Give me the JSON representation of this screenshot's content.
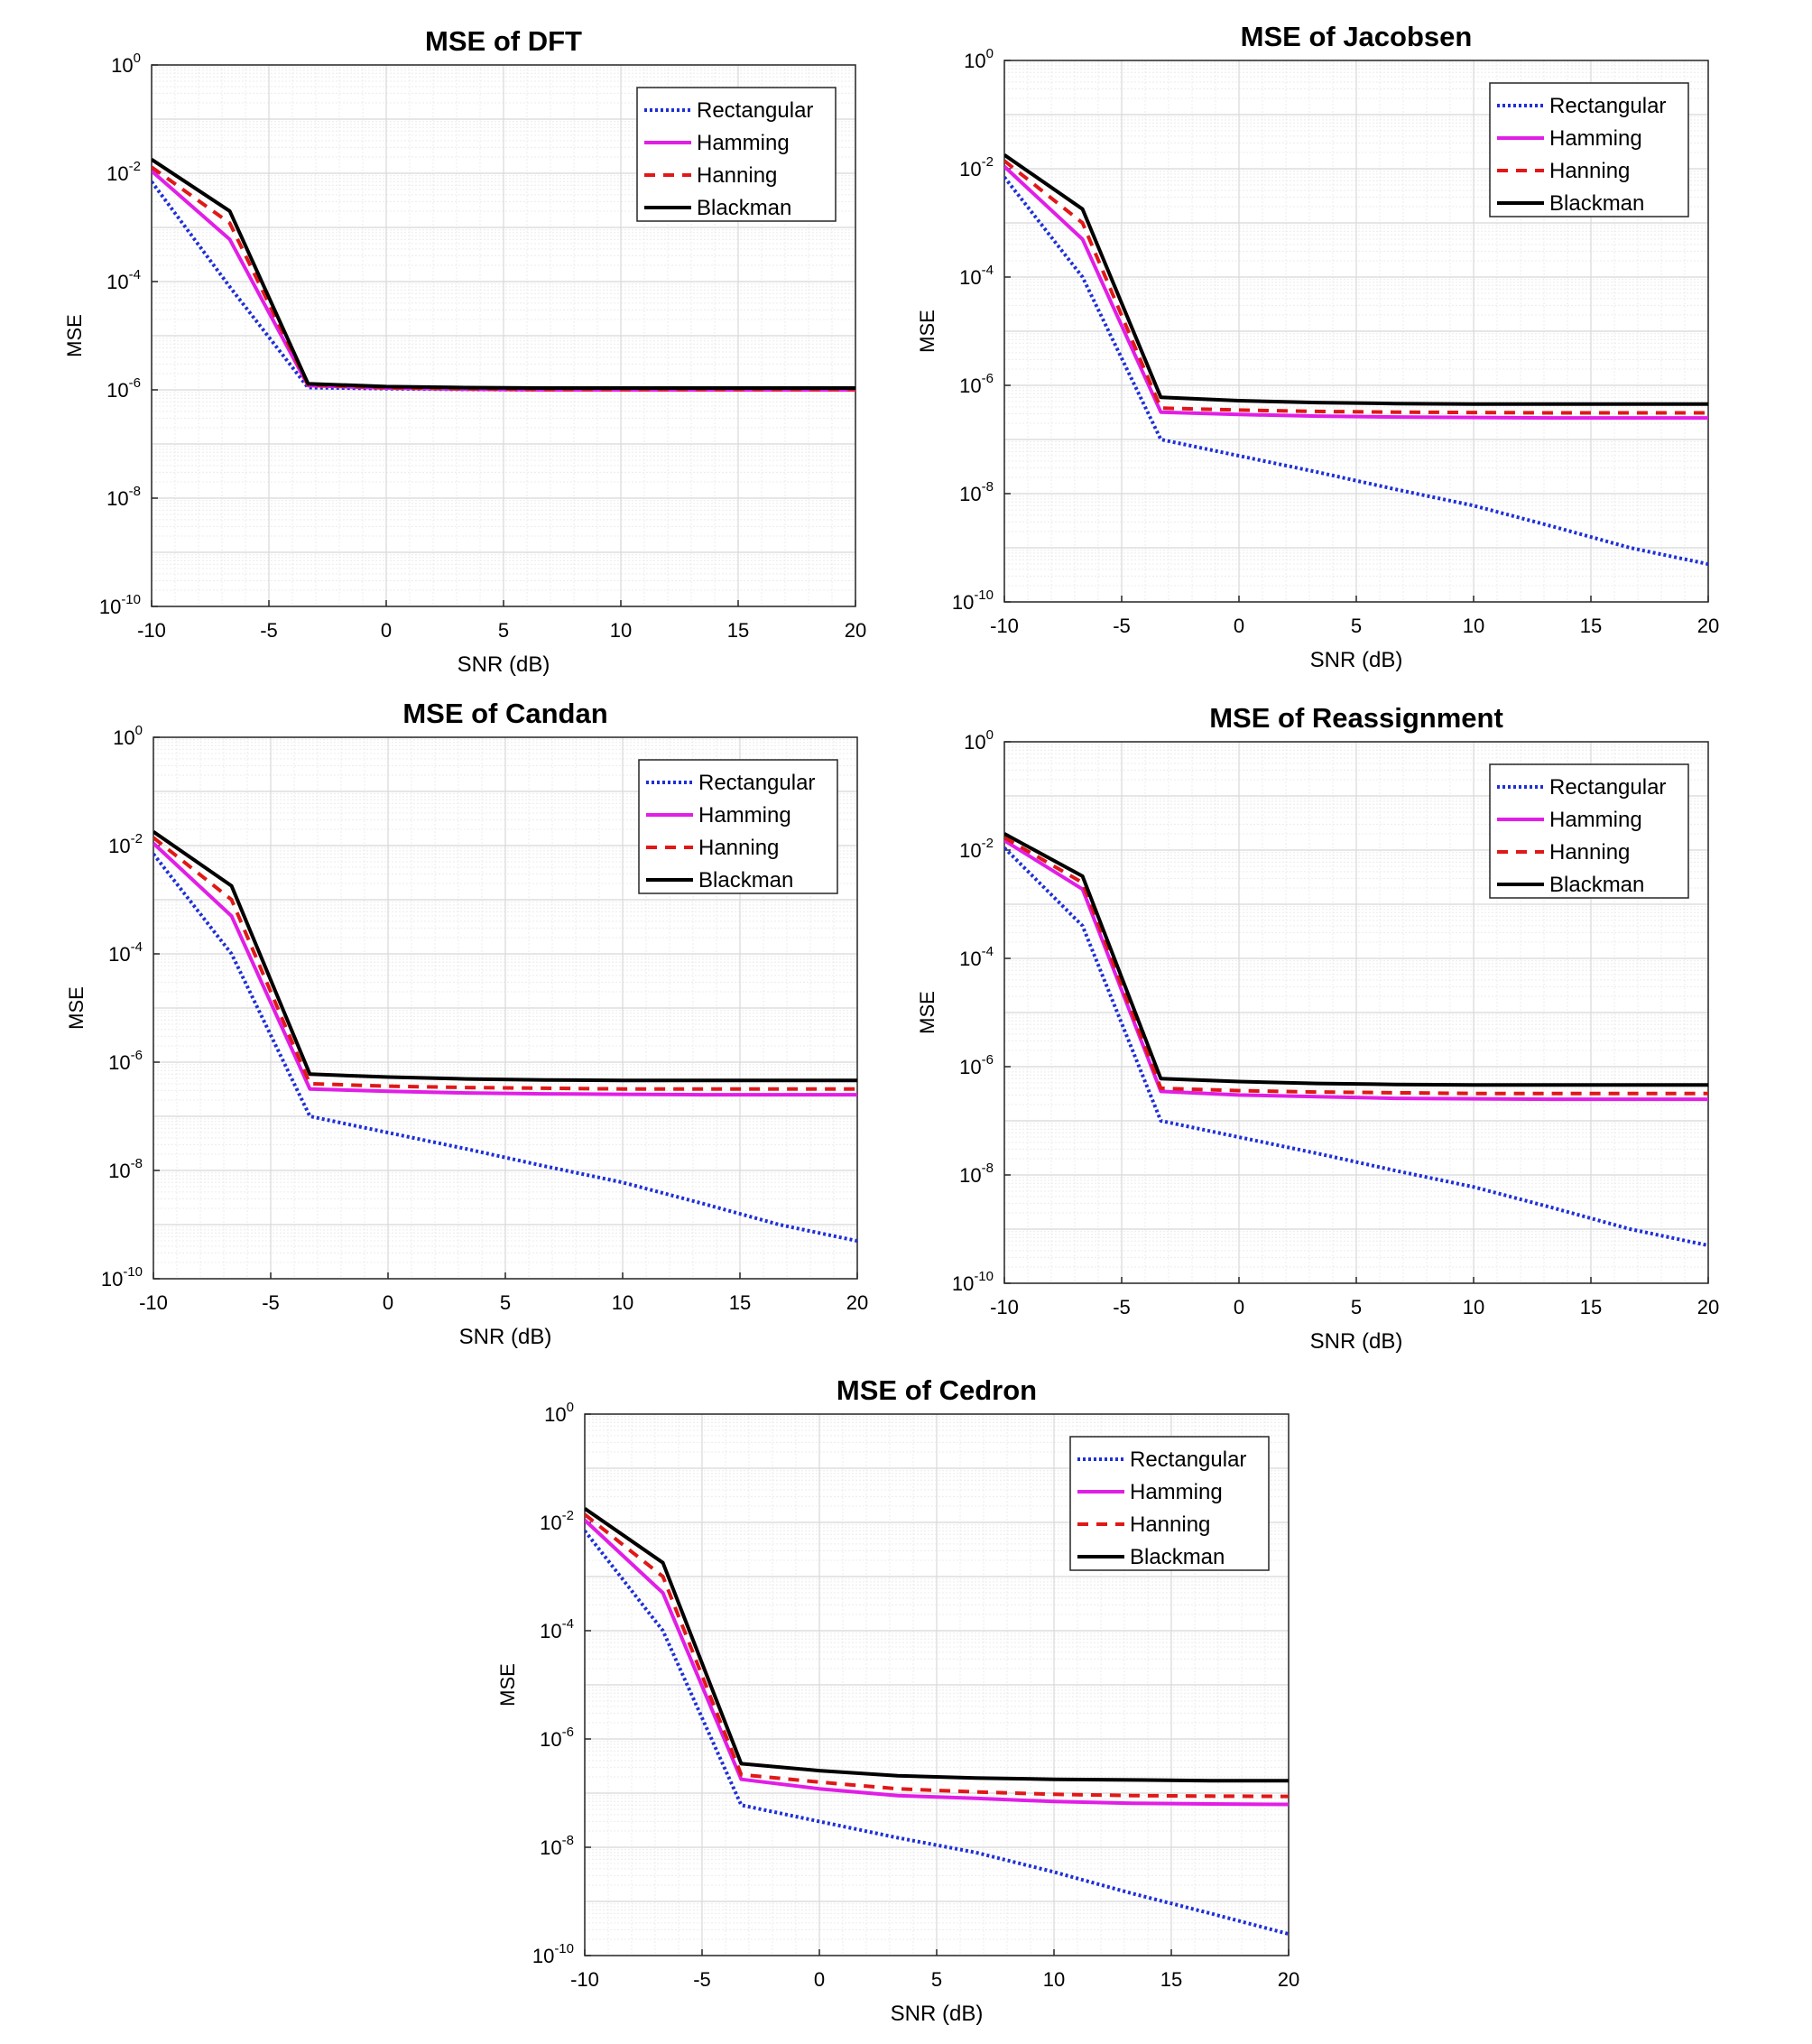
{
  "colors": {
    "rectangular": "#1f2fd6",
    "hamming": "#e11ee6",
    "hanning": "#e01818",
    "blackman": "#000000",
    "grid_major": "#d8d8d8",
    "grid_minor": "#ececec"
  },
  "chart_data": [
    {
      "type": "line",
      "title": "MSE of DFT",
      "xlabel": "SNR (dB)",
      "ylabel": "MSE",
      "xlim": [
        -10,
        20
      ],
      "ylim": [
        1e-10,
        1
      ],
      "yscale": "log",
      "grid": true,
      "legend_position": "top-right",
      "x_ticks": [
        -10,
        -5,
        0,
        5,
        10,
        15,
        20
      ],
      "y_tick_exponents": [
        0,
        -2,
        -4,
        -6,
        -8,
        -10
      ],
      "x": [
        -10,
        -6.67,
        -3.33,
        0,
        3.33,
        6.67,
        10,
        13.33,
        16.67,
        20
      ],
      "series": [
        {
          "name": "Rectangular",
          "style": "dotted",
          "color": "#1f2fd6",
          "values": [
            0.007,
            8e-05,
            1.1e-06,
            1.05e-06,
            1.02e-06,
            1e-06,
            1e-06,
            1e-06,
            1e-06,
            1e-06
          ]
        },
        {
          "name": "Hamming",
          "style": "solid",
          "color": "#e11ee6",
          "values": [
            0.011,
            0.0006,
            1.2e-06,
            1.08e-06,
            1.03e-06,
            1e-06,
            1e-06,
            1e-06,
            1e-06,
            1e-06
          ]
        },
        {
          "name": "Hanning",
          "style": "dashed",
          "color": "#e01818",
          "values": [
            0.013,
            0.0012,
            1.25e-06,
            1.1e-06,
            1.05e-06,
            1.02e-06,
            1.02e-06,
            1.02e-06,
            1.02e-06,
            1.02e-06
          ]
        },
        {
          "name": "Blackman",
          "style": "solid",
          "color": "#000000",
          "values": [
            0.018,
            0.002,
            1.3e-06,
            1.15e-06,
            1.1e-06,
            1.08e-06,
            1.08e-06,
            1.08e-06,
            1.08e-06,
            1.08e-06
          ]
        }
      ]
    },
    {
      "type": "line",
      "title": "MSE of Jacobsen",
      "xlabel": "SNR (dB)",
      "ylabel": "MSE",
      "xlim": [
        -10,
        20
      ],
      "ylim": [
        1e-10,
        1
      ],
      "yscale": "log",
      "grid": true,
      "legend_position": "top-right",
      "x_ticks": [
        -10,
        -5,
        0,
        5,
        10,
        15,
        20
      ],
      "y_tick_exponents": [
        0,
        -2,
        -4,
        -6,
        -8,
        -10
      ],
      "x": [
        -10,
        -6.67,
        -3.33,
        0,
        3.33,
        6.67,
        10,
        13.33,
        16.67,
        20
      ],
      "series": [
        {
          "name": "Rectangular",
          "style": "dotted",
          "color": "#1f2fd6",
          "values": [
            0.007,
            0.0001,
            1e-07,
            5e-08,
            2.5e-08,
            1.2e-08,
            6e-09,
            2.5e-09,
            1e-09,
            5e-10
          ]
        },
        {
          "name": "Hamming",
          "style": "solid",
          "color": "#e11ee6",
          "values": [
            0.011,
            0.0005,
            3.2e-07,
            2.9e-07,
            2.7e-07,
            2.6e-07,
            2.55e-07,
            2.5e-07,
            2.5e-07,
            2.5e-07
          ]
        },
        {
          "name": "Hanning",
          "style": "dashed",
          "color": "#e01818",
          "values": [
            0.014,
            0.001,
            3.8e-07,
            3.5e-07,
            3.3e-07,
            3.2e-07,
            3.15e-07,
            3.1e-07,
            3.1e-07,
            3.1e-07
          ]
        },
        {
          "name": "Blackman",
          "style": "solid",
          "color": "#000000",
          "values": [
            0.018,
            0.0018,
            6e-07,
            5.2e-07,
            4.8e-07,
            4.6e-07,
            4.5e-07,
            4.5e-07,
            4.5e-07,
            4.5e-07
          ]
        }
      ]
    },
    {
      "type": "line",
      "title": "MSE of Candan",
      "xlabel": "SNR (dB)",
      "ylabel": "MSE",
      "xlim": [
        -10,
        20
      ],
      "ylim": [
        1e-10,
        1
      ],
      "yscale": "log",
      "grid": true,
      "legend_position": "top-right",
      "x_ticks": [
        -10,
        -5,
        0,
        5,
        10,
        15,
        20
      ],
      "y_tick_exponents": [
        0,
        -2,
        -4,
        -6,
        -8,
        -10
      ],
      "x": [
        -10,
        -6.67,
        -3.33,
        0,
        3.33,
        6.67,
        10,
        13.33,
        16.67,
        20
      ],
      "series": [
        {
          "name": "Rectangular",
          "style": "dotted",
          "color": "#1f2fd6",
          "values": [
            0.007,
            0.0001,
            1e-07,
            5e-08,
            2.5e-08,
            1.2e-08,
            6e-09,
            2.5e-09,
            1e-09,
            5e-10
          ]
        },
        {
          "name": "Hamming",
          "style": "solid",
          "color": "#e11ee6",
          "values": [
            0.011,
            0.0005,
            3.2e-07,
            2.9e-07,
            2.7e-07,
            2.6e-07,
            2.55e-07,
            2.5e-07,
            2.5e-07,
            2.5e-07
          ]
        },
        {
          "name": "Hanning",
          "style": "dashed",
          "color": "#e01818",
          "values": [
            0.014,
            0.001,
            4e-07,
            3.6e-07,
            3.4e-07,
            3.3e-07,
            3.2e-07,
            3.2e-07,
            3.2e-07,
            3.2e-07
          ]
        },
        {
          "name": "Blackman",
          "style": "solid",
          "color": "#000000",
          "values": [
            0.018,
            0.0018,
            6e-07,
            5.3e-07,
            4.9e-07,
            4.7e-07,
            4.6e-07,
            4.6e-07,
            4.6e-07,
            4.6e-07
          ]
        }
      ]
    },
    {
      "type": "line",
      "title": "MSE of Reassignment",
      "xlabel": "SNR (dB)",
      "ylabel": "MSE",
      "xlim": [
        -10,
        20
      ],
      "ylim": [
        1e-10,
        1
      ],
      "yscale": "log",
      "grid": true,
      "legend_position": "top-right",
      "x_ticks": [
        -10,
        -5,
        0,
        5,
        10,
        15,
        20
      ],
      "y_tick_exponents": [
        0,
        -2,
        -4,
        -6,
        -8,
        -10
      ],
      "x": [
        -10,
        -6.67,
        -3.33,
        0,
        3.33,
        6.67,
        10,
        13.33,
        16.67,
        20
      ],
      "series": [
        {
          "name": "Rectangular",
          "style": "dotted",
          "color": "#1f2fd6",
          "values": [
            0.011,
            0.0004,
            1e-07,
            5e-08,
            2.5e-08,
            1.2e-08,
            6e-09,
            2.5e-09,
            1e-09,
            5e-10
          ]
        },
        {
          "name": "Hamming",
          "style": "solid",
          "color": "#e11ee6",
          "values": [
            0.015,
            0.0019,
            3.5e-07,
            3e-07,
            2.8e-07,
            2.6e-07,
            2.55e-07,
            2.5e-07,
            2.5e-07,
            2.5e-07
          ]
        },
        {
          "name": "Hanning",
          "style": "dashed",
          "color": "#e01818",
          "values": [
            0.017,
            0.0025,
            4e-07,
            3.6e-07,
            3.4e-07,
            3.3e-07,
            3.2e-07,
            3.2e-07,
            3.2e-07,
            3.2e-07
          ]
        },
        {
          "name": "Blackman",
          "style": "solid",
          "color": "#000000",
          "values": [
            0.02,
            0.0033,
            6e-07,
            5.3e-07,
            4.9e-07,
            4.7e-07,
            4.6e-07,
            4.6e-07,
            4.6e-07,
            4.6e-07
          ]
        }
      ]
    },
    {
      "type": "line",
      "title": "MSE of Cedron",
      "xlabel": "SNR (dB)",
      "ylabel": "MSE",
      "xlim": [
        -10,
        20
      ],
      "ylim": [
        1e-10,
        1
      ],
      "yscale": "log",
      "grid": true,
      "legend_position": "top-right",
      "x_ticks": [
        -10,
        -5,
        0,
        5,
        10,
        15,
        20
      ],
      "y_tick_exponents": [
        0,
        -2,
        -4,
        -6,
        -8,
        -10
      ],
      "x": [
        -10,
        -6.67,
        -3.33,
        0,
        3.33,
        6.67,
        10,
        13.33,
        16.67,
        20
      ],
      "series": [
        {
          "name": "Rectangular",
          "style": "dotted",
          "color": "#1f2fd6",
          "values": [
            0.007,
            0.0001,
            6e-08,
            3e-08,
            1.5e-08,
            8e-09,
            3.5e-09,
            1.4e-09,
            6e-10,
            2.5e-10
          ]
        },
        {
          "name": "Hamming",
          "style": "solid",
          "color": "#e11ee6",
          "values": [
            0.011,
            0.0005,
            1.8e-07,
            1.2e-07,
            9e-08,
            8e-08,
            7e-08,
            6.5e-08,
            6.3e-08,
            6.2e-08
          ]
        },
        {
          "name": "Hanning",
          "style": "dashed",
          "color": "#e01818",
          "values": [
            0.014,
            0.001,
            2.2e-07,
            1.6e-07,
            1.2e-07,
            1.05e-07,
            9.5e-08,
            9e-08,
            8.8e-08,
            8.7e-08
          ]
        },
        {
          "name": "Blackman",
          "style": "solid",
          "color": "#000000",
          "values": [
            0.018,
            0.0018,
            3.5e-07,
            2.6e-07,
            2.1e-07,
            1.9e-07,
            1.8e-07,
            1.75e-07,
            1.7e-07,
            1.7e-07
          ]
        }
      ]
    }
  ]
}
